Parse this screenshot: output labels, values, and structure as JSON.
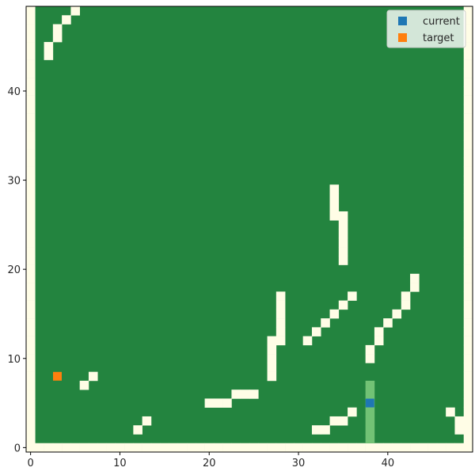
{
  "chart_data": {
    "type": "heatmap",
    "title": "",
    "xlabel": "",
    "ylabel": "",
    "xlim": [
      -0.5,
      49.5
    ],
    "ylim": [
      -0.5,
      49.5
    ],
    "x_ticks": [
      0,
      10,
      20,
      30,
      40
    ],
    "y_ticks": [
      0,
      10,
      20,
      30,
      40
    ],
    "grid": false,
    "legend_position": "top-right",
    "colors": {
      "open": "#23843f",
      "wall": "#fffde6",
      "path": "#72c275",
      "current": "#1f77b4",
      "target": "#ff7f0e"
    },
    "walls": [
      [
        5,
        49
      ],
      [
        4,
        48
      ],
      [
        3,
        47
      ],
      [
        3,
        46
      ],
      [
        2,
        45
      ],
      [
        2,
        44
      ],
      [
        34,
        29
      ],
      [
        34,
        28
      ],
      [
        34,
        27
      ],
      [
        34,
        26
      ],
      [
        35,
        26
      ],
      [
        35,
        25
      ],
      [
        35,
        24
      ],
      [
        35,
        23
      ],
      [
        35,
        22
      ],
      [
        35,
        21
      ],
      [
        43,
        19
      ],
      [
        43,
        18
      ],
      [
        42,
        17
      ],
      [
        42,
        16
      ],
      [
        41,
        15
      ],
      [
        40,
        14
      ],
      [
        39,
        13
      ],
      [
        39,
        12
      ],
      [
        38,
        11
      ],
      [
        38,
        10
      ],
      [
        28,
        17
      ],
      [
        28,
        16
      ],
      [
        28,
        15
      ],
      [
        28,
        14
      ],
      [
        28,
        13
      ],
      [
        28,
        12
      ],
      [
        27,
        12
      ],
      [
        27,
        11
      ],
      [
        27,
        10
      ],
      [
        27,
        9
      ],
      [
        27,
        8
      ],
      [
        36,
        17
      ],
      [
        35,
        16
      ],
      [
        34,
        15
      ],
      [
        33,
        14
      ],
      [
        32,
        13
      ],
      [
        31,
        12
      ],
      [
        7,
        8
      ],
      [
        6,
        7
      ],
      [
        20,
        5
      ],
      [
        21,
        5
      ],
      [
        22,
        5
      ],
      [
        23,
        6
      ],
      [
        24,
        6
      ],
      [
        25,
        6
      ],
      [
        13,
        3
      ],
      [
        12,
        2
      ],
      [
        36,
        4
      ],
      [
        35,
        3
      ],
      [
        34,
        3
      ],
      [
        33,
        2
      ],
      [
        32,
        2
      ],
      [
        47,
        4
      ],
      [
        48,
        3
      ],
      [
        48,
        2
      ]
    ],
    "trail": [
      [
        38,
        7
      ],
      [
        38,
        6
      ],
      [
        38,
        5
      ],
      [
        38,
        4
      ],
      [
        38,
        3
      ],
      [
        38,
        2
      ],
      [
        38,
        1
      ]
    ],
    "series": [
      {
        "name": "current",
        "points": [
          [
            38,
            5
          ]
        ]
      },
      {
        "name": "target",
        "points": [
          [
            3,
            8
          ]
        ]
      }
    ]
  }
}
